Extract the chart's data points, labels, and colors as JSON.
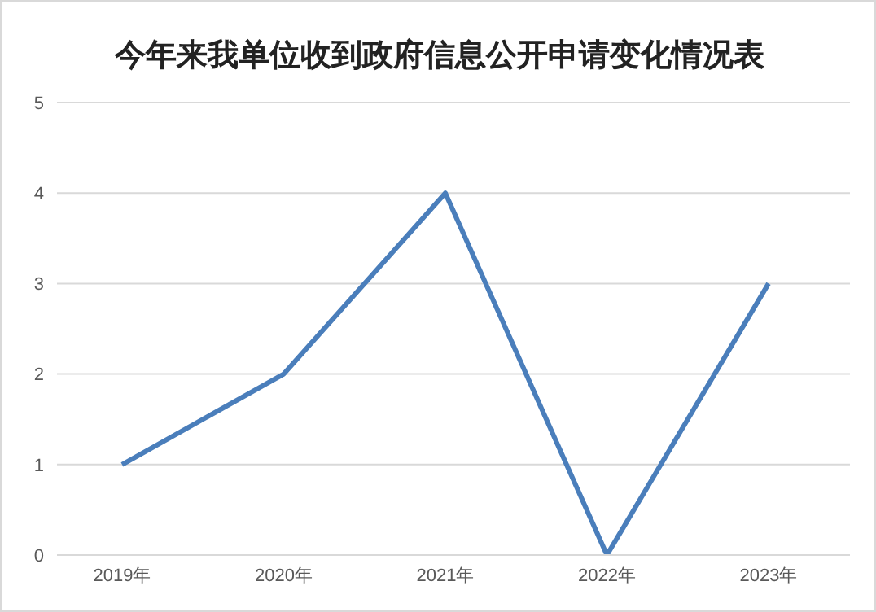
{
  "chart_data": {
    "type": "line",
    "title": "今年来我单位收到政府信息公开申请变化情况表",
    "categories": [
      "2019年",
      "2020年",
      "2021年",
      "2022年",
      "2023年"
    ],
    "series": [
      {
        "color": "#4a7ebb",
        "values": [
          1,
          2,
          4,
          0,
          3
        ]
      }
    ],
    "ylim": [
      0,
      5
    ],
    "yticks": [
      0,
      1,
      2,
      3,
      4,
      5
    ],
    "grid": "y",
    "legend": false,
    "marker": "none",
    "line_style": "solid"
  }
}
